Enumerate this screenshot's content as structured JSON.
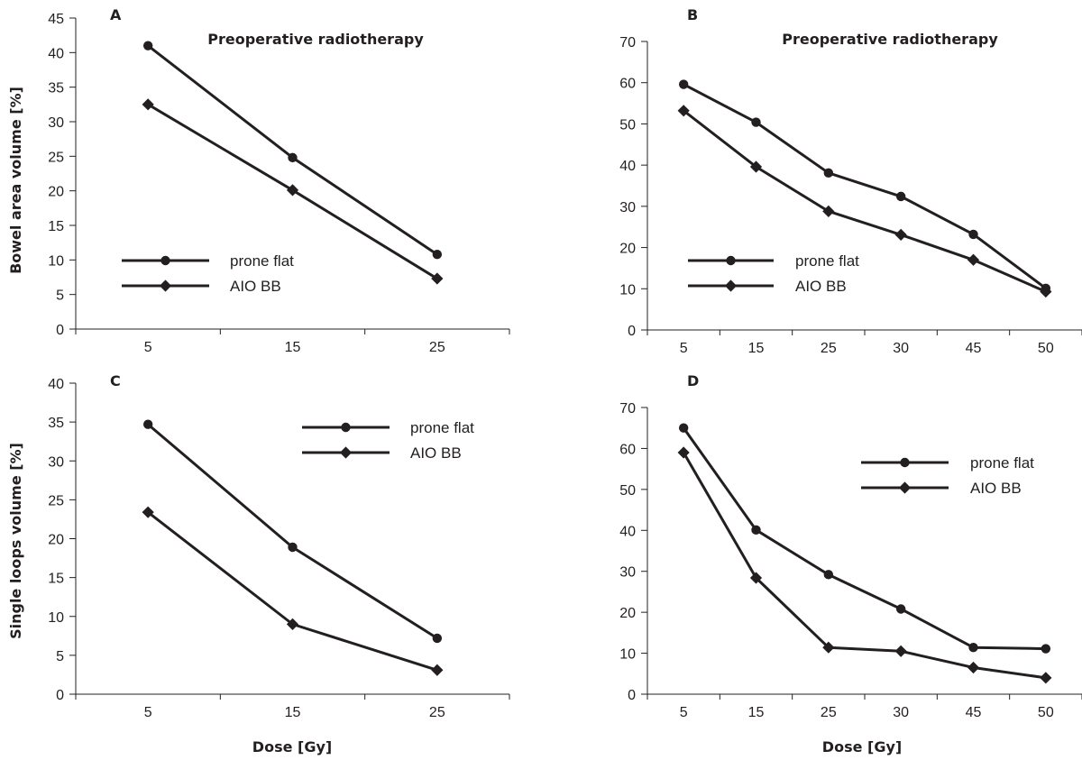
{
  "figure": {
    "ylabel_top": "Bowel area volume [%]",
    "ylabel_bottom": "Single loops volume [%]",
    "xlabel": "Dose [Gy]"
  },
  "chart_data": [
    {
      "id": "A",
      "type": "line",
      "letter": "A",
      "title": "Preoperative radiotherapy",
      "categories": [
        "5",
        "15",
        "25"
      ],
      "ylim": [
        0,
        45
      ],
      "yticks": [
        0,
        5,
        10,
        15,
        20,
        25,
        30,
        35,
        40,
        45
      ],
      "legend_position": "lower-left",
      "series": [
        {
          "name": "prone flat",
          "marker": "circle",
          "values": [
            41,
            24.8,
            10.8
          ]
        },
        {
          "name": "AIO BB",
          "marker": "diamond",
          "values": [
            32.5,
            20.1,
            7.3
          ]
        }
      ]
    },
    {
      "id": "B",
      "type": "line",
      "letter": "B",
      "title": "Preoperative radiotherapy",
      "categories": [
        "5",
        "15",
        "25",
        "30",
        "45",
        "50"
      ],
      "ylim": [
        0,
        70
      ],
      "yticks": [
        0,
        10,
        20,
        30,
        40,
        50,
        60,
        70
      ],
      "legend_position": "lower-left",
      "series": [
        {
          "name": "prone flat",
          "marker": "circle",
          "values": [
            59.6,
            50.4,
            38.1,
            32.4,
            23.2,
            10.1
          ]
        },
        {
          "name": "AIO BB",
          "marker": "diamond",
          "values": [
            53.2,
            39.6,
            28.8,
            23.1,
            17,
            9.3
          ]
        }
      ]
    },
    {
      "id": "C",
      "type": "line",
      "letter": "C",
      "title": "",
      "categories": [
        "5",
        "15",
        "25"
      ],
      "ylim": [
        0,
        40
      ],
      "yticks": [
        0,
        5,
        10,
        15,
        20,
        25,
        30,
        35,
        40
      ],
      "legend_position": "top-right",
      "series": [
        {
          "name": "prone flat",
          "marker": "circle",
          "values": [
            34.7,
            18.9,
            7.2
          ]
        },
        {
          "name": "AIO BB",
          "marker": "diamond",
          "values": [
            23.4,
            9,
            3.1
          ]
        }
      ]
    },
    {
      "id": "D",
      "type": "line",
      "letter": "D",
      "title": "",
      "categories": [
        "5",
        "15",
        "25",
        "30",
        "45",
        "50"
      ],
      "ylim": [
        0,
        70
      ],
      "yticks": [
        0,
        10,
        20,
        30,
        40,
        50,
        60,
        70
      ],
      "legend_position": "top-right",
      "series": [
        {
          "name": "prone flat",
          "marker": "circle",
          "values": [
            65,
            40.1,
            29.2,
            20.8,
            11.4,
            11.1
          ]
        },
        {
          "name": "AIO BB",
          "marker": "diamond",
          "values": [
            59,
            28.4,
            11.4,
            10.5,
            6.5,
            4
          ]
        }
      ]
    }
  ]
}
